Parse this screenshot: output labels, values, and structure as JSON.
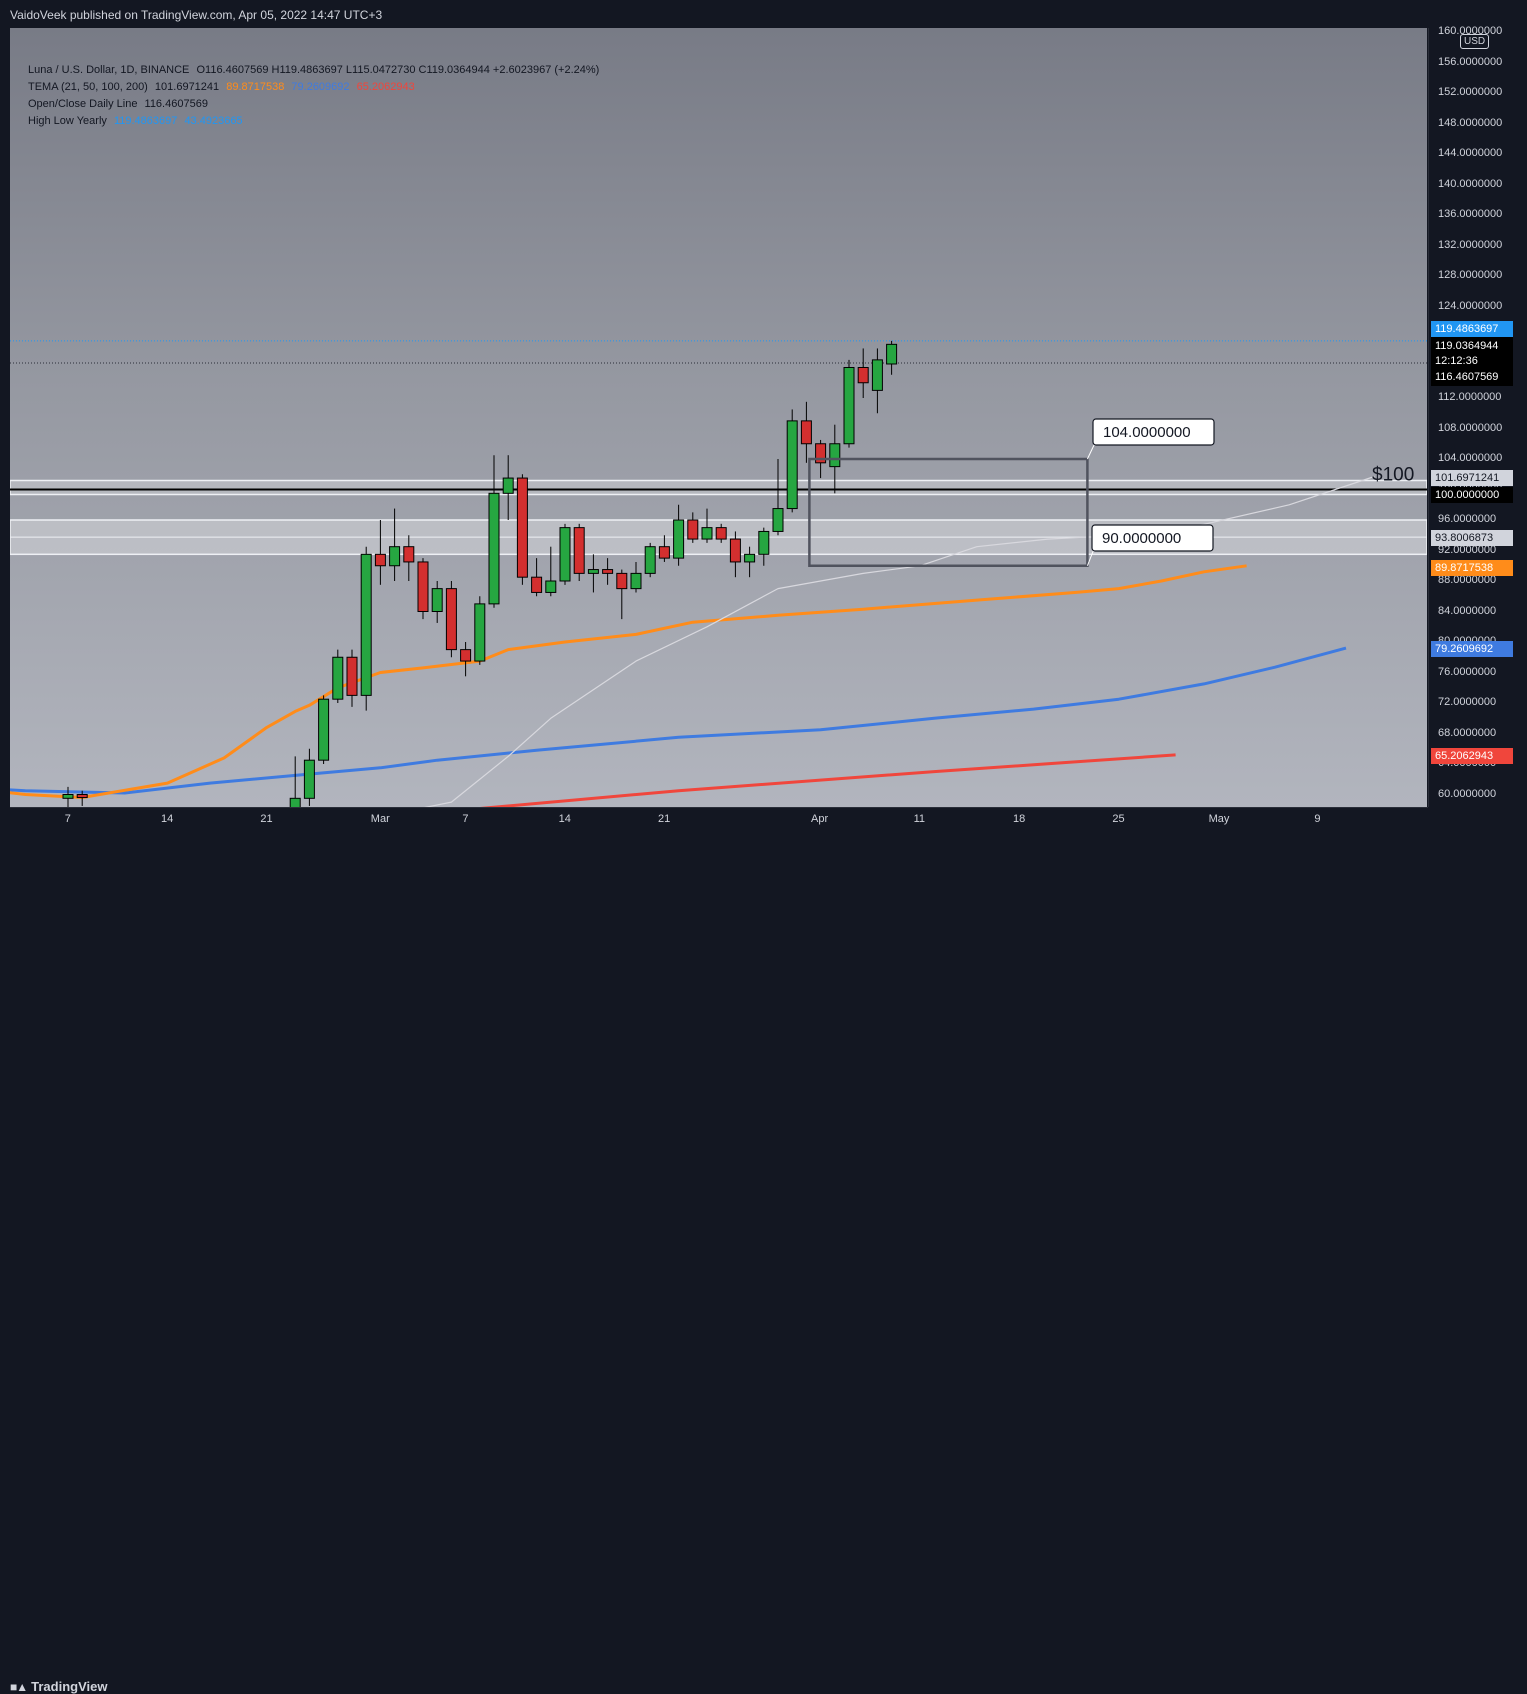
{
  "header": {
    "published": "VaidoVeek published on TradingView.com, Apr 05, 2022 14:47 UTC+3"
  },
  "legend": {
    "symbol": "Luna / U.S. Dollar, 1D, BINANCE",
    "ohlc": "O116.4607569 H119.4863697 L115.0472730 C119.0364944 +2.6023967 (+2.24%)",
    "tema_label": "TEMA (21, 50, 100, 200)",
    "tema_values": [
      "101.6971241",
      "89.8717538",
      "79.2609692",
      "65.2062943"
    ],
    "open_close_label": "Open/Close Daily Line",
    "open_close_value": "116.4607569",
    "high_low_label": "High Low Yearly",
    "high_low_values": [
      "119.4863697",
      "43.4923665"
    ]
  },
  "currency_badge": "USD",
  "annotations": {
    "level_100": "$100",
    "box_top_label": "104.0000000",
    "box_bottom_label": "90.0000000"
  },
  "price_labels": {
    "high_yearly": "119.4863697",
    "last": "119.0364944",
    "countdown": "12:12:36",
    "open_close": "116.4607569",
    "tema21": "101.6971241",
    "level100": "100.0000000",
    "zone_mid": "93.8006873",
    "tema50": "89.8717538",
    "tema100": "79.2609692",
    "tema200": "65.2062943"
  },
  "colors": {
    "up": "#26a641",
    "down": "#d32f2f",
    "tema21": "#d8d8de",
    "tema50": "#ff8c1a",
    "tema100": "#3f7be0",
    "tema200": "#f0463c",
    "high_yearly": "#2196f3",
    "background": "#131722"
  },
  "chart_data": {
    "type": "candlestick",
    "y_axis_ticks": [
      "60.0000000",
      "64.0000000",
      "68.0000000",
      "72.0000000",
      "76.0000000",
      "80.0000000",
      "84.0000000",
      "88.0000000",
      "92.0000000",
      "96.0000000",
      "100.0000000",
      "104.0000000",
      "108.0000000",
      "112.0000000",
      "116.0000000",
      "120.0000000",
      "124.0000000",
      "128.0000000",
      "132.0000000",
      "136.0000000",
      "140.0000000",
      "144.0000000",
      "148.0000000",
      "152.0000000",
      "156.0000000",
      "160.0000000"
    ],
    "x_axis_ticks": [
      "7",
      "14",
      "21",
      "Mar",
      "7",
      "14",
      "21",
      "Apr",
      "11",
      "18",
      "25",
      "May",
      "9"
    ],
    "ylim": [
      58,
      162
    ],
    "candles": [
      {
        "d": "2022-02-07",
        "o": 59.5,
        "h": 61.0,
        "l": 57.5,
        "c": 60.0
      },
      {
        "d": "2022-02-08",
        "o": 60.0,
        "h": 60.5,
        "l": 58.5,
        "c": 59.6
      },
      {
        "d": "2022-02-23",
        "o": 57.0,
        "h": 65.0,
        "l": 56.0,
        "c": 59.5
      },
      {
        "d": "2022-02-24",
        "o": 59.5,
        "h": 66.0,
        "l": 58.5,
        "c": 64.5
      },
      {
        "d": "2022-02-25",
        "o": 64.5,
        "h": 73.0,
        "l": 64.0,
        "c": 72.5
      },
      {
        "d": "2022-02-26",
        "o": 72.5,
        "h": 79.0,
        "l": 72.0,
        "c": 78.0
      },
      {
        "d": "2022-02-27",
        "o": 78.0,
        "h": 79.0,
        "l": 71.5,
        "c": 73.0
      },
      {
        "d": "2022-02-28",
        "o": 73.0,
        "h": 92.5,
        "l": 71.0,
        "c": 91.5
      },
      {
        "d": "2022-03-01",
        "o": 91.5,
        "h": 96.0,
        "l": 87.5,
        "c": 90.0
      },
      {
        "d": "2022-03-02",
        "o": 90.0,
        "h": 97.5,
        "l": 88.0,
        "c": 92.5
      },
      {
        "d": "2022-03-03",
        "o": 92.5,
        "h": 94.0,
        "l": 88.0,
        "c": 90.5
      },
      {
        "d": "2022-03-04",
        "o": 90.5,
        "h": 91.0,
        "l": 83.0,
        "c": 84.0
      },
      {
        "d": "2022-03-05",
        "o": 84.0,
        "h": 88.0,
        "l": 82.5,
        "c": 87.0
      },
      {
        "d": "2022-03-06",
        "o": 87.0,
        "h": 88.0,
        "l": 78.0,
        "c": 79.0
      },
      {
        "d": "2022-03-07",
        "o": 79.0,
        "h": 80.0,
        "l": 75.5,
        "c": 77.5
      },
      {
        "d": "2022-03-08",
        "o": 77.5,
        "h": 86.0,
        "l": 77.0,
        "c": 85.0
      },
      {
        "d": "2022-03-09",
        "o": 85.0,
        "h": 104.5,
        "l": 84.5,
        "c": 99.5
      },
      {
        "d": "2022-03-10",
        "o": 99.5,
        "h": 104.5,
        "l": 96.0,
        "c": 101.5
      },
      {
        "d": "2022-03-11",
        "o": 101.5,
        "h": 102.0,
        "l": 87.5,
        "c": 88.5
      },
      {
        "d": "2022-03-12",
        "o": 88.5,
        "h": 91.0,
        "l": 86.0,
        "c": 86.5
      },
      {
        "d": "2022-03-13",
        "o": 86.5,
        "h": 92.5,
        "l": 86.0,
        "c": 88.0
      },
      {
        "d": "2022-03-14",
        "o": 88.0,
        "h": 95.5,
        "l": 87.5,
        "c": 95.0
      },
      {
        "d": "2022-03-15",
        "o": 95.0,
        "h": 95.5,
        "l": 88.0,
        "c": 89.0
      },
      {
        "d": "2022-03-16",
        "o": 89.0,
        "h": 91.5,
        "l": 86.5,
        "c": 89.5
      },
      {
        "d": "2022-03-17",
        "o": 89.5,
        "h": 91.0,
        "l": 87.5,
        "c": 89.0
      },
      {
        "d": "2022-03-18",
        "o": 89.0,
        "h": 89.5,
        "l": 83.0,
        "c": 87.0
      },
      {
        "d": "2022-03-19",
        "o": 87.0,
        "h": 90.5,
        "l": 86.5,
        "c": 89.0
      },
      {
        "d": "2022-03-20",
        "o": 89.0,
        "h": 93.0,
        "l": 88.5,
        "c": 92.5
      },
      {
        "d": "2022-03-21",
        "o": 92.5,
        "h": 94.0,
        "l": 90.5,
        "c": 91.0
      },
      {
        "d": "2022-03-22",
        "o": 91.0,
        "h": 98.0,
        "l": 90.0,
        "c": 96.0
      },
      {
        "d": "2022-03-23",
        "o": 96.0,
        "h": 97.0,
        "l": 93.0,
        "c": 93.5
      },
      {
        "d": "2022-03-24",
        "o": 93.5,
        "h": 97.5,
        "l": 93.0,
        "c": 95.0
      },
      {
        "d": "2022-03-25",
        "o": 95.0,
        "h": 95.5,
        "l": 93.0,
        "c": 93.5
      },
      {
        "d": "2022-03-26",
        "o": 93.5,
        "h": 94.5,
        "l": 88.5,
        "c": 90.5
      },
      {
        "d": "2022-03-27",
        "o": 90.5,
        "h": 92.5,
        "l": 88.5,
        "c": 91.5
      },
      {
        "d": "2022-03-28",
        "o": 91.5,
        "h": 95.0,
        "l": 90.0,
        "c": 94.5
      },
      {
        "d": "2022-03-29",
        "o": 94.5,
        "h": 104.0,
        "l": 94.0,
        "c": 97.5
      },
      {
        "d": "2022-03-30",
        "o": 97.5,
        "h": 110.5,
        "l": 97.0,
        "c": 109.0
      },
      {
        "d": "2022-03-31",
        "o": 109.0,
        "h": 111.5,
        "l": 103.5,
        "c": 106.0
      },
      {
        "d": "2022-04-01",
        "o": 106.0,
        "h": 106.5,
        "l": 101.5,
        "c": 103.5
      },
      {
        "d": "2022-04-02",
        "o": 103.0,
        "h": 108.5,
        "l": 99.5,
        "c": 106.0
      },
      {
        "d": "2022-04-03",
        "o": 106.0,
        "h": 117.0,
        "l": 105.5,
        "c": 116.0
      },
      {
        "d": "2022-04-04",
        "o": 116.0,
        "h": 118.5,
        "l": 112.0,
        "c": 114.0
      },
      {
        "d": "2022-04-05",
        "o": 113.0,
        "h": 118.5,
        "l": 110.0,
        "c": 117.0
      },
      {
        "d": "2022-04-06",
        "o": 116.4607569,
        "h": 119.4863697,
        "l": 115.047273,
        "c": 119.0364944
      }
    ],
    "tema21": [
      [
        -3,
        57.5
      ],
      [
        5,
        56
      ],
      [
        10,
        54
      ],
      [
        17,
        50
      ],
      [
        23,
        57.5
      ],
      [
        27,
        59
      ],
      [
        31,
        65
      ],
      [
        34,
        70
      ],
      [
        40,
        77.5
      ],
      [
        45,
        82
      ],
      [
        50,
        87
      ],
      [
        56,
        89
      ],
      [
        60,
        90
      ],
      [
        64,
        92.5
      ],
      [
        69,
        93.5
      ],
      [
        74,
        94
      ],
      [
        79,
        95
      ],
      [
        86,
        98
      ],
      [
        92,
        101.7
      ]
    ],
    "tema50": [
      [
        -31,
        66
      ],
      [
        -24,
        64.8
      ],
      [
        -17,
        63.2
      ],
      [
        -10,
        61.5
      ],
      [
        -3,
        60
      ],
      [
        1,
        59.6
      ],
      [
        7,
        61.5
      ],
      [
        11,
        64.8
      ],
      [
        14,
        68.8
      ],
      [
        16,
        70.9
      ],
      [
        17,
        71.7
      ],
      [
        19,
        74
      ],
      [
        22,
        76
      ],
      [
        25,
        76.6
      ],
      [
        29,
        77.5
      ],
      [
        31,
        79
      ],
      [
        35,
        80
      ],
      [
        40,
        81
      ],
      [
        44,
        82.6
      ],
      [
        50,
        83.5
      ],
      [
        56,
        84.3
      ],
      [
        64,
        85.5
      ],
      [
        71,
        86.5
      ],
      [
        74,
        87
      ],
      [
        77,
        88
      ],
      [
        80,
        89.2
      ],
      [
        83,
        90
      ]
    ],
    "tema100": [
      [
        -31,
        63
      ],
      [
        -24,
        62.8
      ],
      [
        -17,
        62.5
      ],
      [
        -10,
        61.2
      ],
      [
        -3,
        60.5
      ],
      [
        4,
        60.2
      ],
      [
        10,
        61.5
      ],
      [
        16,
        62.5
      ],
      [
        22,
        63.5
      ],
      [
        26,
        64.5
      ],
      [
        33,
        65.8
      ],
      [
        43,
        67.5
      ],
      [
        53,
        68.5
      ],
      [
        61,
        70
      ],
      [
        68,
        71.2
      ],
      [
        74,
        72.5
      ],
      [
        80,
        74.5
      ],
      [
        85,
        76.7
      ],
      [
        90,
        79.2
      ]
    ],
    "tema200": [
      [
        -31,
        54.5
      ],
      [
        -17,
        54
      ],
      [
        -3,
        53.5
      ],
      [
        10,
        55
      ],
      [
        25,
        57.5
      ],
      [
        43,
        60.5
      ],
      [
        61,
        63
      ],
      [
        78,
        65.2
      ]
    ],
    "high_yearly": 119.4863697,
    "open_close_line": 116.4607569,
    "level_100": 100,
    "zone": [
      91.5,
      96
    ],
    "box": {
      "top": 104,
      "bottom": 90
    },
    "arrow_path": [
      [
        104.5,
        105.5
      ],
      [
        97.5,
        100
      ],
      [
        131,
        149
      ]
    ]
  }
}
